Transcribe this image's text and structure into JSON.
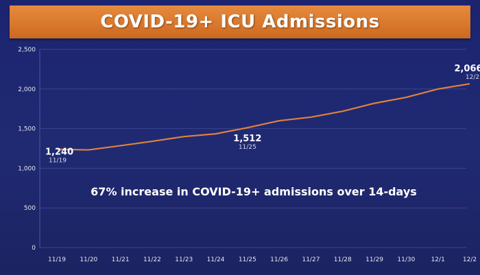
{
  "header": {
    "title": "COVID-19+ ICU Admissions"
  },
  "annotation": "67% increase in COVID-19+ admissions over 14-days",
  "colors": {
    "background": "#1f2a6e",
    "header": "#dc7a30",
    "line": "#e0823a",
    "grid": "#3a4690"
  },
  "chart_data": {
    "type": "line",
    "title": "COVID-19+ ICU Admissions",
    "xlabel": "",
    "ylabel": "",
    "categories": [
      "11/19",
      "11/20",
      "11/21",
      "11/22",
      "11/23",
      "11/24",
      "11/25",
      "11/26",
      "11/27",
      "11/28",
      "11/29",
      "11/30",
      "12/1",
      "12/2"
    ],
    "series": [
      {
        "values": [
          1240,
          1232,
          1285,
          1340,
          1400,
          1435,
          1512,
          1600,
          1645,
          1720,
          1820,
          1895,
          2000,
          2066
        ]
      }
    ],
    "ylim": [
      0,
      2500
    ],
    "yticks": [
      "0",
      "500",
      "1,000",
      "1,500",
      "2,000",
      "2,500"
    ],
    "grid": true,
    "callouts": [
      {
        "index": 0,
        "value": "1,240",
        "date": "11/19"
      },
      {
        "index": 6,
        "value": "1,512",
        "date": "11/25"
      },
      {
        "index": 13,
        "value": "2,066",
        "date": "12/2"
      }
    ]
  }
}
